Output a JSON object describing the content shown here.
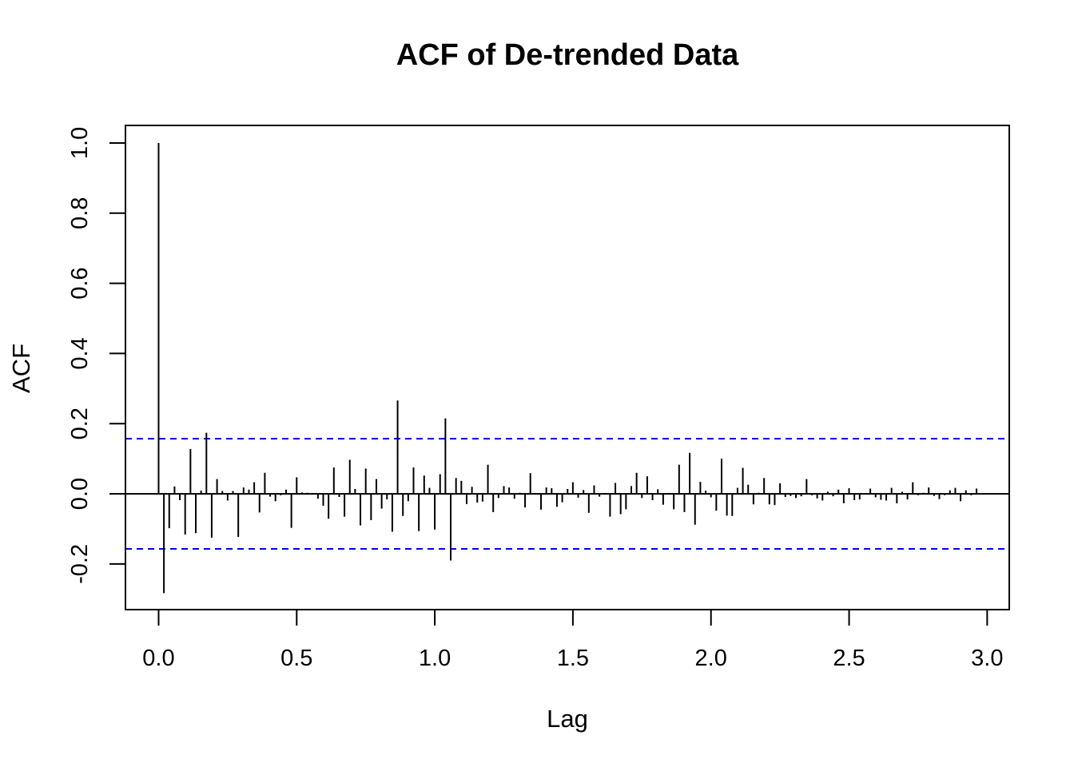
{
  "chart_data": {
    "type": "bar",
    "title": "ACF of De-trended Data",
    "xlabel": "Lag",
    "ylabel": "ACF",
    "xlim": [
      -0.12,
      3.08
    ],
    "ylim": [
      -0.33,
      1.05
    ],
    "x_ticks": [
      0.0,
      0.5,
      1.0,
      1.5,
      2.0,
      2.5,
      3.0
    ],
    "x_tick_labels": [
      "0.0",
      "0.5",
      "1.0",
      "1.5",
      "2.0",
      "2.5",
      "3.0"
    ],
    "y_ticks": [
      -0.2,
      0.0,
      0.2,
      0.4,
      0.6,
      0.8,
      1.0
    ],
    "y_tick_labels": [
      "-0.2",
      "0.0",
      "0.2",
      "0.4",
      "0.6",
      "0.8",
      "1.0"
    ],
    "lag_step": 0.01923,
    "confidence_bound": 0.157,
    "confidence_color": "#0000ff",
    "grid": false,
    "values": [
      1.0,
      -0.283,
      -0.098,
      0.021,
      -0.018,
      -0.116,
      0.128,
      -0.112,
      0.009,
      0.174,
      -0.125,
      0.042,
      0.008,
      -0.019,
      0.008,
      -0.123,
      0.018,
      0.012,
      0.033,
      -0.053,
      0.06,
      -0.008,
      -0.021,
      -0.004,
      0.012,
      -0.097,
      0.047,
      0.004,
      0.003,
      0.002,
      -0.014,
      -0.034,
      -0.071,
      0.075,
      -0.009,
      -0.065,
      0.097,
      0.014,
      -0.09,
      0.072,
      -0.075,
      0.042,
      -0.042,
      -0.016,
      -0.108,
      0.266,
      -0.063,
      -0.021,
      0.075,
      -0.106,
      0.052,
      0.017,
      -0.102,
      0.056,
      0.215,
      -0.19,
      0.045,
      0.037,
      -0.029,
      0.02,
      -0.025,
      -0.022,
      0.083,
      -0.052,
      -0.012,
      0.022,
      0.018,
      -0.014,
      0.003,
      -0.039,
      0.059,
      0.002,
      -0.045,
      0.018,
      0.016,
      -0.037,
      -0.024,
      0.014,
      0.033,
      -0.011,
      0.011,
      -0.054,
      0.024,
      -0.008,
      0.002,
      -0.065,
      0.031,
      -0.058,
      -0.044,
      0.022,
      0.06,
      -0.012,
      0.05,
      -0.018,
      0.013,
      -0.031,
      0.002,
      -0.044,
      0.083,
      -0.052,
      0.117,
      -0.088,
      0.034,
      0.009,
      -0.01,
      -0.048,
      0.1,
      -0.062,
      -0.063,
      0.017,
      0.074,
      0.026,
      -0.03,
      0.003,
      0.045,
      -0.03,
      -0.032,
      0.03,
      -0.009,
      -0.006,
      -0.012,
      -0.007,
      0.042,
      -0.004,
      -0.013,
      -0.019,
      0.006,
      -0.007,
      0.012,
      -0.027,
      0.016,
      -0.018,
      -0.016,
      -0.002,
      0.015,
      -0.01,
      -0.017,
      -0.019,
      0.017,
      -0.027,
      0.006,
      -0.016,
      0.033,
      -0.004,
      0.003,
      0.018,
      -0.006,
      -0.015,
      -0.004,
      0.01,
      0.017,
      -0.021,
      0.01,
      -0.004,
      0.015
    ]
  }
}
